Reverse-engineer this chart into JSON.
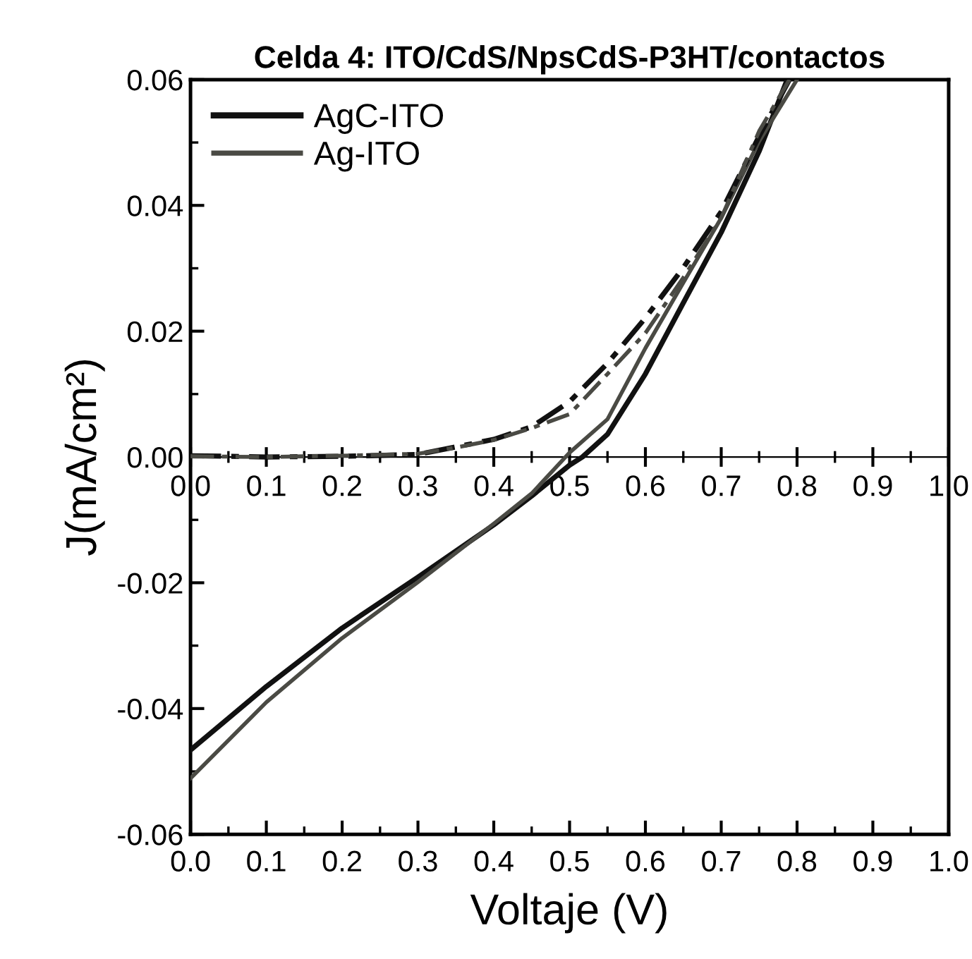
{
  "chart_data": {
    "type": "line",
    "title": "Celda 4: ITO/CdS/NpsCdS-P3HT/contactos",
    "xlabel": "Voltaje (V)",
    "ylabel": "J(mA/cm²)",
    "xlim": [
      0,
      1.0
    ],
    "ylim": [
      -0.06,
      0.06
    ],
    "xticks": [
      {
        "value": 0,
        "label": "0.0"
      },
      {
        "value": 0.1,
        "label": "0.1"
      },
      {
        "value": 0.2,
        "label": "0.2"
      },
      {
        "value": 0.3,
        "label": "0.3"
      },
      {
        "value": 0.4,
        "label": "0.4"
      },
      {
        "value": 0.5,
        "label": "0.5"
      },
      {
        "value": 0.6,
        "label": "0.6"
      },
      {
        "value": 0.7,
        "label": "0.7"
      },
      {
        "value": 0.8,
        "label": "0.8"
      },
      {
        "value": 0.9,
        "label": "0.9"
      },
      {
        "value": 1.0,
        "label": "1.0"
      }
    ],
    "x2lim": [
      0,
      1.0
    ],
    "x2ticks": [
      {
        "value": 0,
        "label": "0.0"
      },
      {
        "value": 0.1,
        "label": "0.1"
      },
      {
        "value": 0.2,
        "label": "0.2"
      },
      {
        "value": 0.3,
        "label": "0.3"
      },
      {
        "value": 0.4,
        "label": "0.4"
      },
      {
        "value": 0.5,
        "label": "0.5"
      },
      {
        "value": 0.6,
        "label": "0.6"
      },
      {
        "value": 0.7,
        "label": "0.7"
      },
      {
        "value": 0.8,
        "label": "0.8"
      },
      {
        "value": 0.9,
        "label": "0.9"
      },
      {
        "value": 1.0,
        "label": "1.0"
      }
    ],
    "yticks": [
      {
        "value": -0.06,
        "label": "-0.06"
      },
      {
        "value": -0.04,
        "label": "-0.04"
      },
      {
        "value": -0.02,
        "label": "-0.02"
      },
      {
        "value": 0,
        "label": "0.00"
      },
      {
        "value": 0.02,
        "label": "0.02"
      },
      {
        "value": 0.04,
        "label": "0.04"
      },
      {
        "value": 0.06,
        "label": "0.06"
      }
    ],
    "grid": false,
    "legend": "top left",
    "marker": "none",
    "series": [
      {
        "name": "AgC-ITO",
        "color": "#111111",
        "line_style": "solid",
        "x": [
          0,
          0.1,
          0.2,
          0.3,
          0.4,
          0.45,
          0.5,
          0.517,
          0.55,
          0.6,
          0.65,
          0.7,
          0.75,
          0.787
        ],
        "values": [
          -0.0466,
          -0.0365,
          -0.0272,
          -0.0191,
          -0.0108,
          -0.0062,
          -0.0013,
          0.0,
          0.0036,
          0.0132,
          0.0245,
          0.0357,
          0.0486,
          0.06
        ]
      },
      {
        "name": "Ag-ITO",
        "color": "#4a4a44",
        "line_style": "solid",
        "x": [
          0,
          0.1,
          0.2,
          0.3,
          0.4,
          0.45,
          0.5,
          0.55,
          0.6,
          0.65,
          0.7,
          0.75,
          0.8
        ],
        "values": [
          -0.0511,
          -0.039,
          -0.0288,
          -0.0199,
          -0.0106,
          -0.0058,
          0.0007,
          0.006,
          0.0173,
          0.0277,
          0.038,
          0.0502,
          0.06
        ]
      },
      {
        "color": "#111111",
        "line_style": "dashdot",
        "x": [
          0,
          0.1,
          0.2,
          0.3,
          0.35,
          0.4,
          0.45,
          0.5,
          0.55,
          0.6,
          0.65,
          0.7,
          0.75,
          0.79
        ],
        "values": [
          0.0002,
          0.0,
          0.0001,
          0.0004,
          0.0016,
          0.0028,
          0.0048,
          0.0088,
          0.0149,
          0.0221,
          0.0301,
          0.039,
          0.051,
          0.06
        ]
      },
      {
        "color": "#4a4a44",
        "line_style": "dashdot",
        "x": [
          0,
          0.1,
          0.2,
          0.3,
          0.35,
          0.4,
          0.45,
          0.5,
          0.55,
          0.6,
          0.65,
          0.7,
          0.75,
          0.79
        ],
        "values": [
          0.0001,
          0.0,
          0.0002,
          0.0005,
          0.0015,
          0.0027,
          0.0046,
          0.0068,
          0.0132,
          0.0197,
          0.0285,
          0.038,
          0.0518,
          0.06
        ]
      }
    ]
  }
}
